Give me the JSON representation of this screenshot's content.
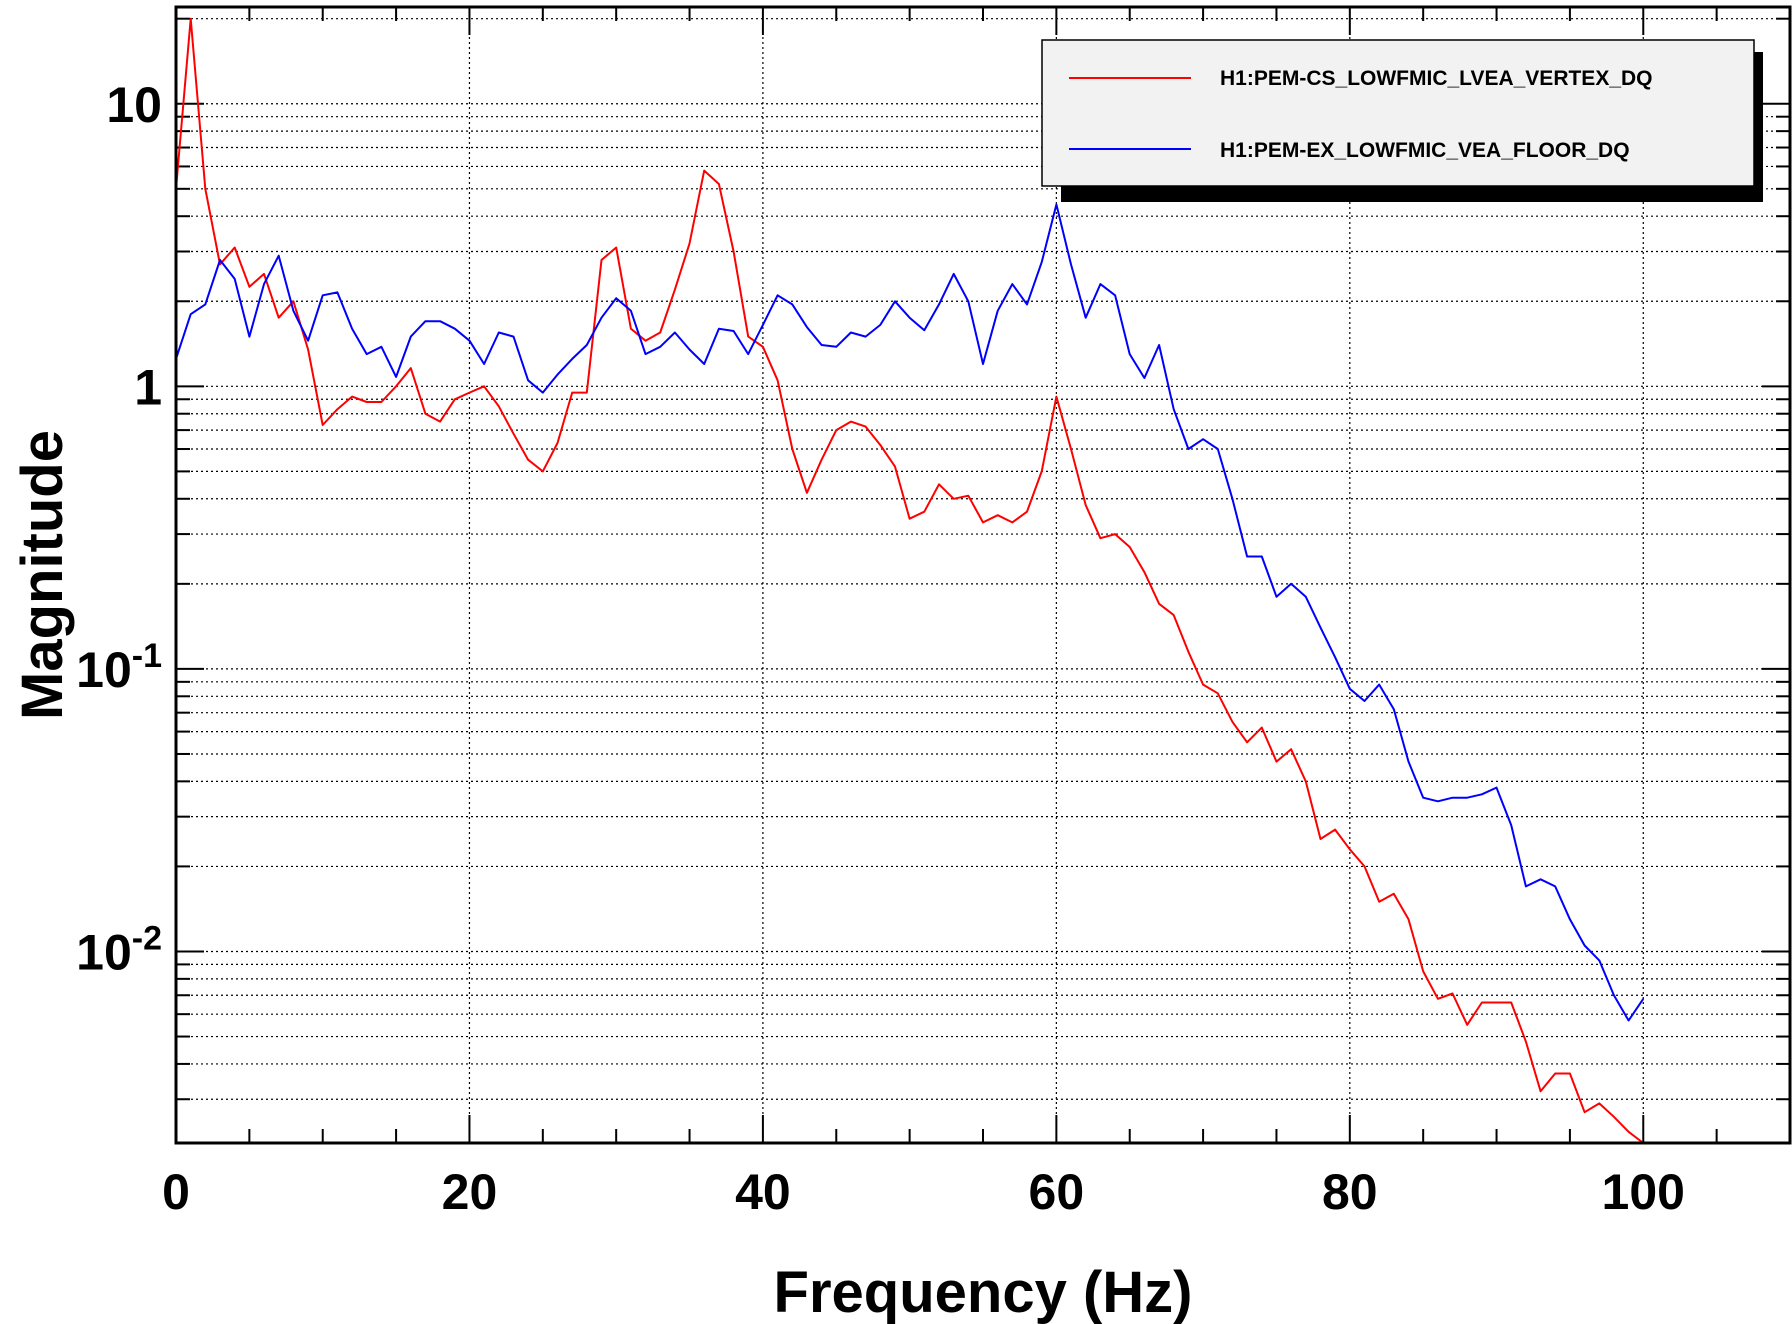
{
  "chart_data": {
    "type": "line",
    "title": "",
    "xlabel": "Frequency (Hz)",
    "ylabel": "Magnitude",
    "xlim": [
      0,
      110
    ],
    "ylim": [
      0.0021,
      22
    ],
    "y_scale": "log",
    "grid": true,
    "legend_position": "top-right",
    "x_ticks": [
      {
        "value": 0,
        "label": "0"
      },
      {
        "value": 20,
        "label": "20"
      },
      {
        "value": 40,
        "label": "40"
      },
      {
        "value": 60,
        "label": "60"
      },
      {
        "value": 80,
        "label": "80"
      },
      {
        "value": 100,
        "label": "100"
      }
    ],
    "y_ticks": [
      {
        "value": 10,
        "base": "10",
        "exp": ""
      },
      {
        "value": 1,
        "base": "1",
        "exp": ""
      },
      {
        "value": 0.1,
        "base": "10",
        "exp": "-1"
      },
      {
        "value": 0.01,
        "base": "10",
        "exp": "-2"
      }
    ],
    "series": [
      {
        "name": "H1:PEM-CS_LOWFMIC_LVEA_VERTEX_DQ",
        "color": "#ff0000",
        "x": [
          0,
          1,
          2,
          3,
          4,
          5,
          6,
          7,
          8,
          9,
          10,
          11,
          12,
          13,
          14,
          15,
          16,
          17,
          18,
          19,
          20,
          21,
          22,
          23,
          24,
          25,
          26,
          27,
          28,
          29,
          30,
          31,
          32,
          33,
          34,
          35,
          36,
          37,
          38,
          39,
          40,
          41,
          42,
          43,
          44,
          45,
          46,
          47,
          48,
          49,
          50,
          51,
          52,
          53,
          54,
          55,
          56,
          57,
          58,
          59,
          60,
          61,
          62,
          63,
          64,
          65,
          66,
          67,
          68,
          69,
          70,
          71,
          72,
          73,
          74,
          75,
          76,
          77,
          78,
          79,
          80,
          81,
          82,
          83,
          84,
          85,
          86,
          87,
          88,
          89,
          90,
          91,
          92,
          93,
          94,
          95,
          96,
          97,
          98,
          99,
          100
        ],
        "y": [
          5,
          20,
          5,
          2.7,
          3.1,
          2.25,
          2.5,
          1.75,
          2.0,
          1.35,
          0.73,
          0.83,
          0.92,
          0.88,
          0.88,
          1.0,
          1.16,
          0.8,
          0.75,
          0.9,
          0.95,
          1.0,
          0.85,
          0.68,
          0.55,
          0.5,
          0.63,
          0.95,
          0.95,
          2.8,
          3.1,
          1.6,
          1.45,
          1.55,
          2.2,
          3.2,
          5.8,
          5.2,
          3.0,
          1.5,
          1.38,
          1.05,
          0.6,
          0.42,
          0.55,
          0.7,
          0.75,
          0.72,
          0.62,
          0.52,
          0.34,
          0.36,
          0.45,
          0.4,
          0.41,
          0.33,
          0.35,
          0.33,
          0.36,
          0.5,
          0.92,
          0.6,
          0.38,
          0.29,
          0.3,
          0.27,
          0.22,
          0.17,
          0.155,
          0.115,
          0.088,
          0.082,
          0.065,
          0.055,
          0.062,
          0.047,
          0.052,
          0.04,
          0.025,
          0.027,
          0.023,
          0.02,
          0.015,
          0.016,
          0.013,
          0.0085,
          0.0068,
          0.0071,
          0.0055,
          0.0066,
          0.0066,
          0.0066,
          0.0048,
          0.0032,
          0.0037,
          0.0037,
          0.0027,
          0.0029,
          0.0026,
          0.0023,
          0.0021
        ]
      },
      {
        "name": "H1:PEM-EX_LOWFMIC_VEA_FLOOR_DQ",
        "color": "#0000ff",
        "x": [
          0,
          1,
          2,
          3,
          4,
          5,
          6,
          7,
          8,
          9,
          10,
          11,
          12,
          13,
          14,
          15,
          16,
          17,
          18,
          19,
          20,
          21,
          22,
          23,
          24,
          25,
          26,
          27,
          28,
          29,
          30,
          31,
          32,
          33,
          34,
          35,
          36,
          37,
          38,
          39,
          40,
          41,
          42,
          43,
          44,
          45,
          46,
          47,
          48,
          49,
          50,
          51,
          52,
          53,
          54,
          55,
          56,
          57,
          58,
          59,
          60,
          61,
          62,
          63,
          64,
          65,
          66,
          67,
          68,
          69,
          70,
          71,
          72,
          73,
          74,
          75,
          76,
          77,
          78,
          79,
          80,
          81,
          82,
          83,
          84,
          85,
          86,
          87,
          88,
          89,
          90,
          91,
          92,
          93,
          94,
          95,
          96,
          97,
          98,
          99,
          100
        ],
        "y": [
          1.25,
          1.8,
          1.95,
          2.8,
          2.4,
          1.5,
          2.3,
          2.9,
          1.85,
          1.45,
          2.1,
          2.15,
          1.6,
          1.3,
          1.38,
          1.08,
          1.5,
          1.7,
          1.7,
          1.6,
          1.45,
          1.2,
          1.55,
          1.5,
          1.05,
          0.95,
          1.1,
          1.25,
          1.4,
          1.75,
          2.05,
          1.85,
          1.3,
          1.38,
          1.55,
          1.35,
          1.2,
          1.6,
          1.57,
          1.3,
          1.65,
          2.1,
          1.95,
          1.62,
          1.4,
          1.38,
          1.55,
          1.5,
          1.65,
          2.0,
          1.75,
          1.58,
          1.95,
          2.5,
          2.0,
          1.2,
          1.85,
          2.3,
          1.95,
          2.75,
          4.4,
          2.7,
          1.75,
          2.3,
          2.1,
          1.3,
          1.07,
          1.4,
          0.83,
          0.6,
          0.65,
          0.6,
          0.4,
          0.25,
          0.25,
          0.18,
          0.2,
          0.18,
          0.14,
          0.11,
          0.085,
          0.077,
          0.088,
          0.072,
          0.047,
          0.035,
          0.034,
          0.035,
          0.035,
          0.036,
          0.038,
          0.028,
          0.017,
          0.018,
          0.017,
          0.013,
          0.0105,
          0.0093,
          0.007,
          0.0057,
          0.0068
        ]
      }
    ]
  }
}
